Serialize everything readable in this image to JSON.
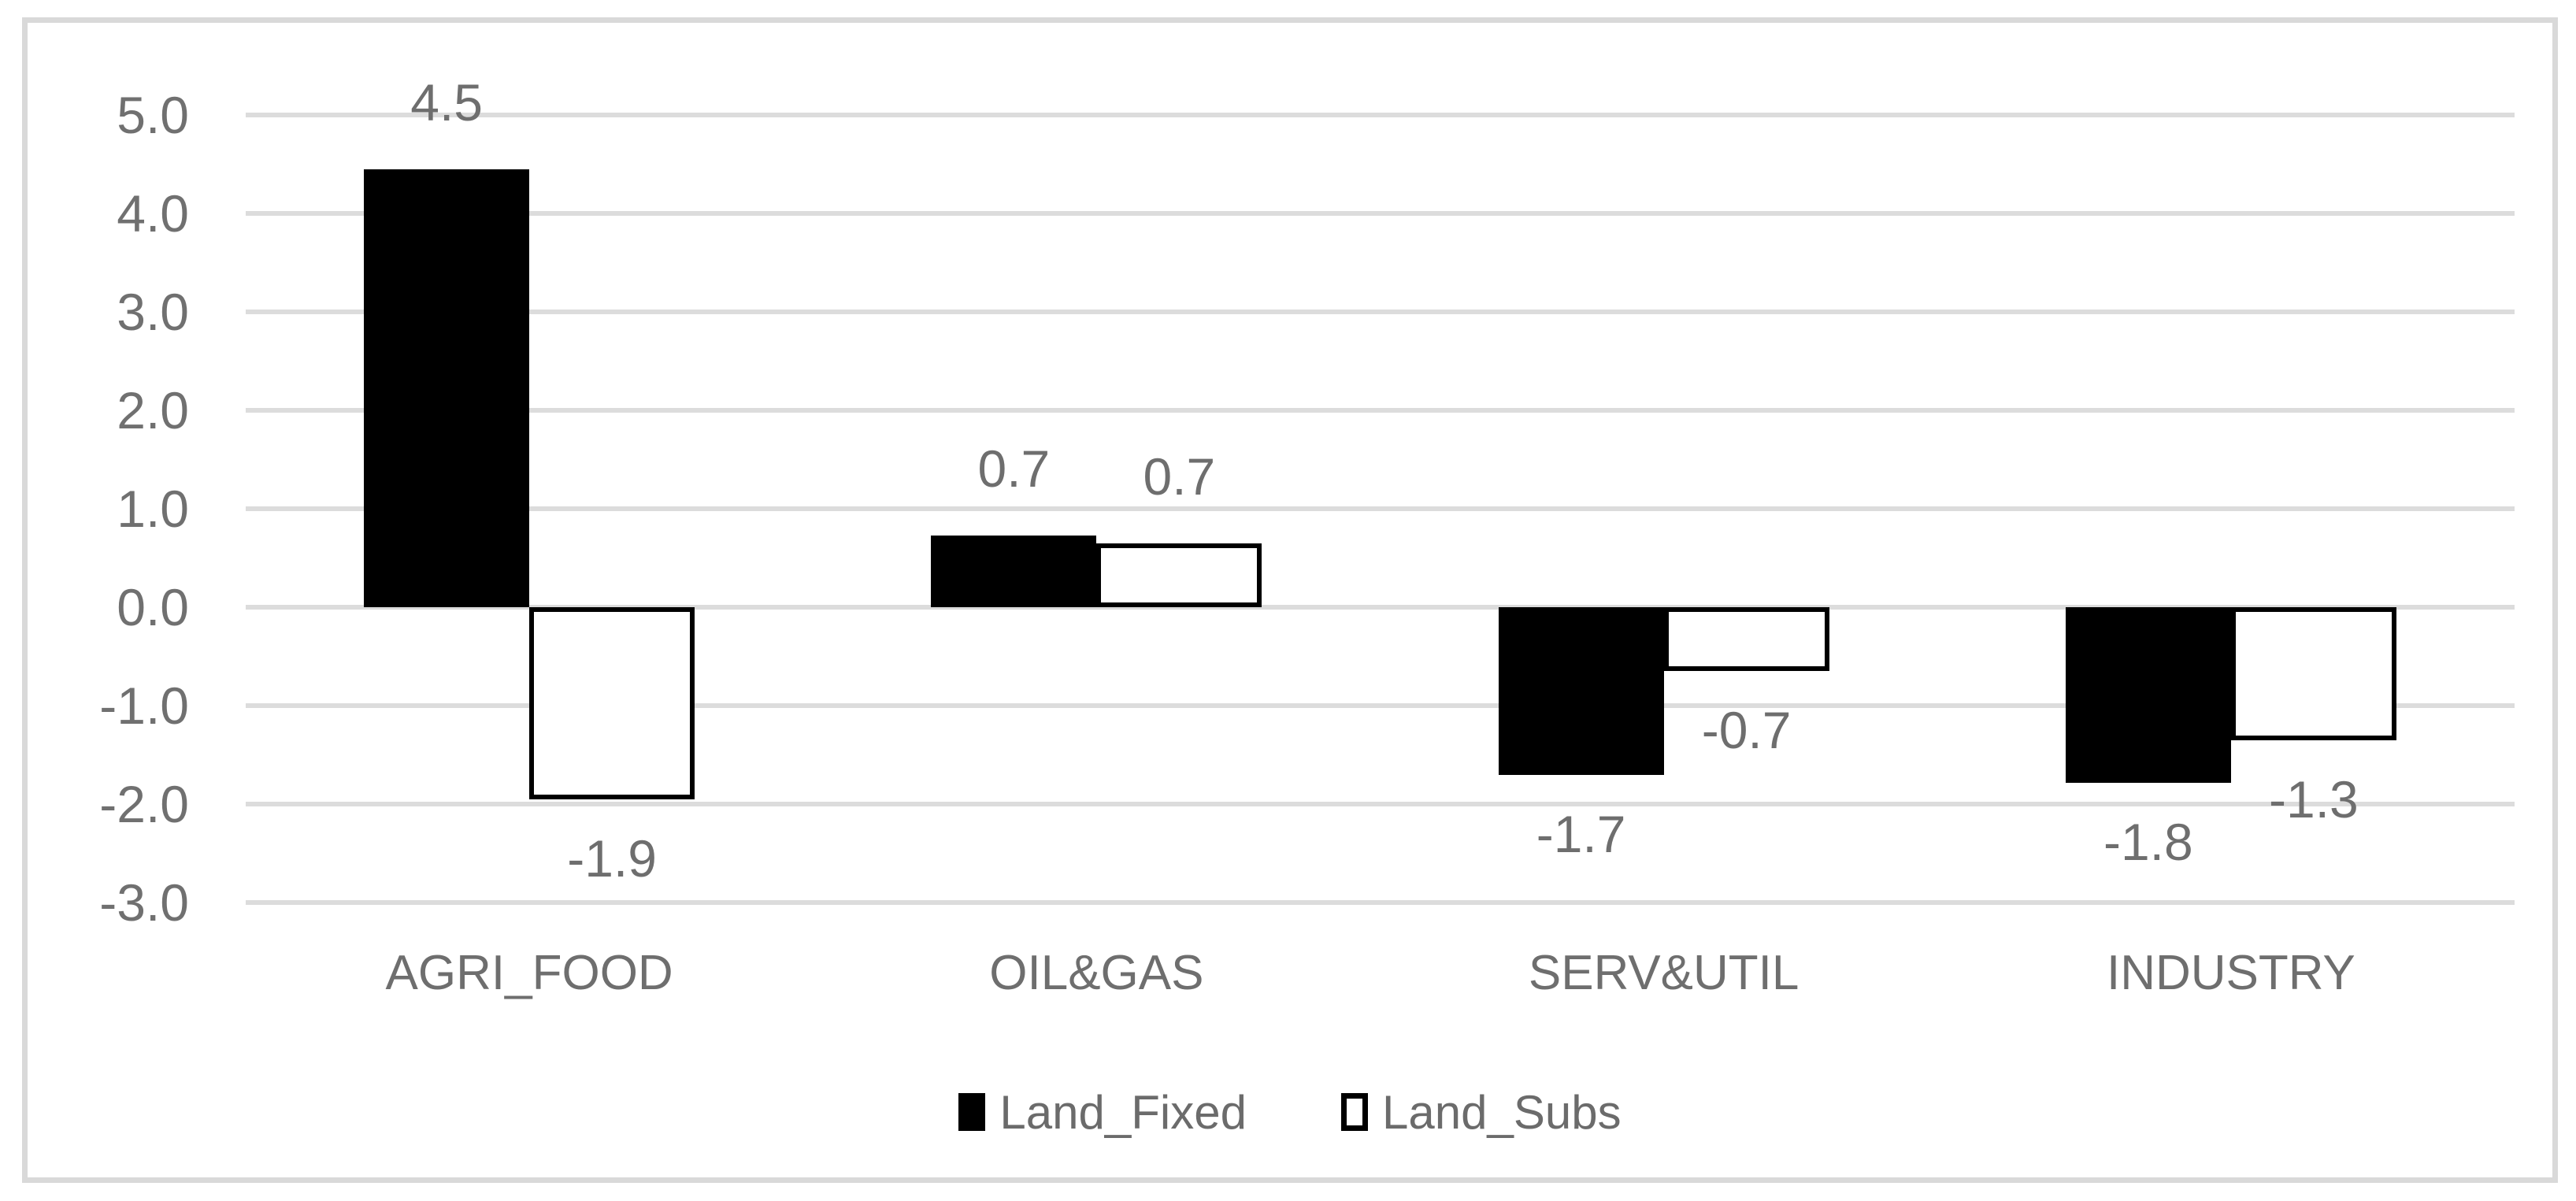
{
  "chart_data": {
    "type": "bar",
    "title": "",
    "categories": [
      "AGRI_FOOD",
      "OIL&GAS",
      "SERV&UTIL",
      "INDUSTRY"
    ],
    "series": [
      {
        "name": "Land_Fixed",
        "values": [
          4.5,
          0.7,
          -1.7,
          -1.8
        ],
        "value_labels": [
          "4.5",
          "0.7",
          "-1.7",
          "-1.8"
        ],
        "drawn_values": [
          4.45,
          0.73,
          -1.7,
          -1.78
        ],
        "fill": "#000000",
        "border": "#000000"
      },
      {
        "name": "Land_Subs",
        "values": [
          -1.9,
          0.7,
          -0.7,
          -1.3
        ],
        "value_labels": [
          "-1.9",
          "0.7",
          "-0.7",
          "-1.3"
        ],
        "drawn_values": [
          -1.95,
          0.65,
          -0.65,
          -1.35
        ],
        "fill": "#ffffff",
        "border": "#000000"
      }
    ],
    "y_axis": {
      "min": -3.0,
      "max": 5.0,
      "step": 1.0,
      "tick_labels": [
        "5.0",
        "4.0",
        "3.0",
        "2.0",
        "1.0",
        "0.0",
        "-1.0",
        "-2.0",
        "-3.0"
      ]
    },
    "grid": true,
    "legend_position": "bottom",
    "legend_entries": [
      "Land_Fixed",
      "Land_Subs"
    ],
    "colors": {
      "grid": "#dcdcdc",
      "frame_border": "#d9d9d9",
      "text": "#6e6e6e",
      "bar_fixed": "#000000",
      "bar_subs_fill": "#ffffff",
      "bar_subs_border": "#000000",
      "background": "#ffffff"
    }
  }
}
